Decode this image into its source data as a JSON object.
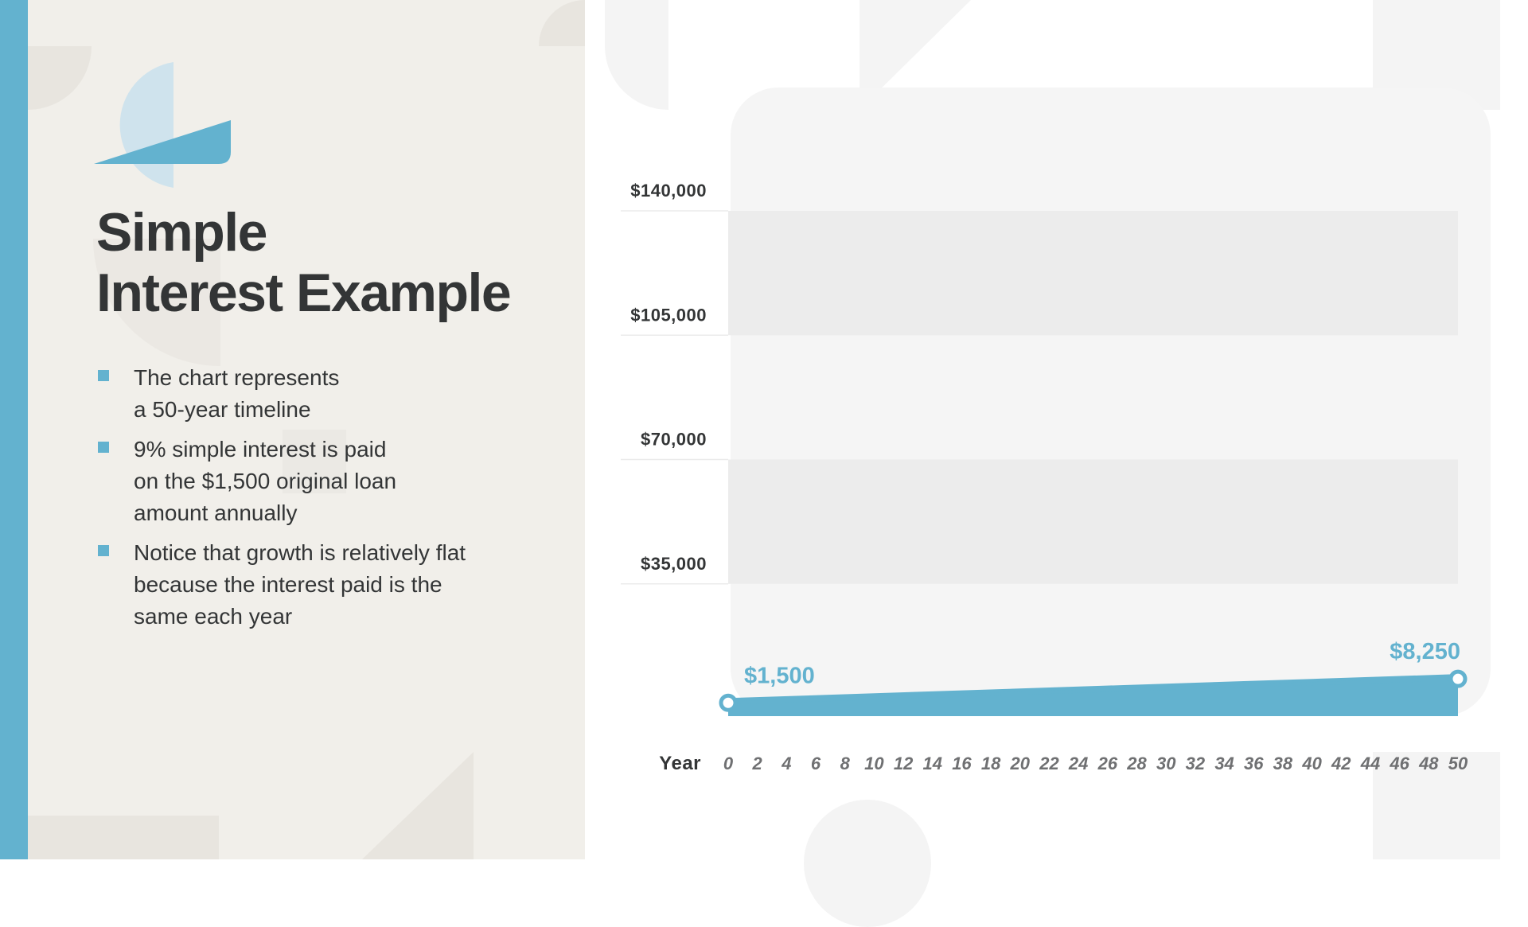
{
  "slide": {
    "title_lines": [
      "Simple",
      "Interest Example"
    ],
    "bullets": [
      {
        "lines": [
          "The chart represents",
          "a 50-year timeline"
        ]
      },
      {
        "lines": [
          "9% simple interest is paid",
          "on the $1,500 original loan",
          "amount annually"
        ]
      },
      {
        "lines": [
          "Notice that growth is relatively flat",
          "because the interest paid is the",
          "same each year"
        ]
      }
    ],
    "colors": {
      "accent": "#63b2cf",
      "text": "#333536",
      "panel": "#f1efea"
    }
  },
  "chart_data": {
    "type": "area",
    "title": "",
    "xlabel": "Year",
    "ylabel": "",
    "x": [
      0,
      50
    ],
    "x_ticks": [
      0,
      2,
      4,
      6,
      8,
      10,
      12,
      14,
      16,
      18,
      20,
      22,
      24,
      26,
      28,
      30,
      32,
      34,
      36,
      38,
      40,
      42,
      44,
      46,
      48,
      50
    ],
    "y_ticks": [
      35000,
      70000,
      105000,
      140000
    ],
    "y_tick_labels": [
      "$35,000",
      "$70,000",
      "$105,000",
      "$140,000"
    ],
    "ylim": [
      0,
      140000
    ],
    "series": [
      {
        "values": [
          1500,
          8250
        ],
        "color": "#63b2cf"
      }
    ],
    "annotations": [
      "$1,500",
      "$8,250"
    ],
    "grid": "alternating horizontal bands",
    "legend": "none"
  }
}
